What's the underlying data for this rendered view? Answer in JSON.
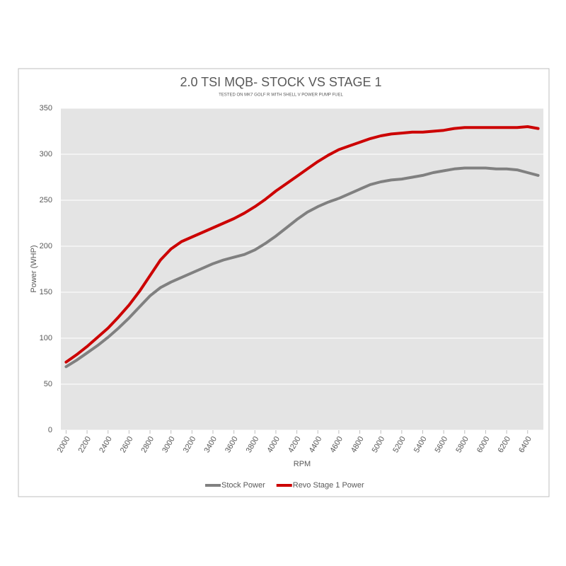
{
  "chart_data": {
    "type": "line",
    "title": "2.0 TSI MQB- STOCK VS STAGE 1",
    "subtitle": "TESTED ON MK7 GOLF R WITH SHELL V POWER PUMP FUEL",
    "x_label": "RPM",
    "y_label": "Power (WHP)",
    "x": [
      2000,
      2100,
      2200,
      2300,
      2400,
      2500,
      2600,
      2700,
      2800,
      2900,
      3000,
      3100,
      3200,
      3300,
      3400,
      3500,
      3600,
      3700,
      3800,
      3900,
      4000,
      4100,
      4200,
      4300,
      4400,
      4500,
      4600,
      4700,
      4800,
      4900,
      5000,
      5100,
      5200,
      5300,
      5400,
      5500,
      5600,
      5700,
      5800,
      5900,
      6000,
      6100,
      6200,
      6300,
      6400,
      6500
    ],
    "series": [
      {
        "name": "Stock Power",
        "color": "#808080",
        "values": [
          69,
          76,
          84,
          92,
          101,
          111,
          122,
          134,
          146,
          155,
          161,
          166,
          171,
          176,
          181,
          185,
          188,
          191,
          196,
          203,
          211,
          220,
          229,
          237,
          243,
          248,
          252,
          257,
          262,
          267,
          270,
          272,
          273,
          275,
          277,
          280,
          282,
          284,
          285,
          285,
          285,
          284,
          284,
          283,
          280,
          277
        ]
      },
      {
        "name": "Revo Stage 1 Power",
        "color": "#cc0000",
        "values": [
          74,
          82,
          91,
          101,
          111,
          123,
          136,
          151,
          168,
          185,
          197,
          205,
          210,
          215,
          220,
          225,
          230,
          236,
          243,
          251,
          260,
          268,
          276,
          284,
          292,
          299,
          305,
          309,
          313,
          317,
          320,
          322,
          323,
          324,
          324,
          325,
          326,
          328,
          329,
          329,
          329,
          329,
          329,
          329,
          330,
          328
        ]
      }
    ],
    "xlim": [
      1950,
      6550
    ],
    "xticks": [
      2000,
      2200,
      2400,
      2600,
      2800,
      3000,
      3200,
      3400,
      3600,
      3800,
      4000,
      4200,
      4400,
      4600,
      4800,
      5000,
      5200,
      5400,
      5600,
      5800,
      6000,
      6200,
      6400
    ],
    "ylim": [
      0,
      350
    ],
    "yticks": [
      0,
      50,
      100,
      150,
      200,
      250,
      300,
      350
    ],
    "grid": true,
    "legend": "bottom"
  }
}
